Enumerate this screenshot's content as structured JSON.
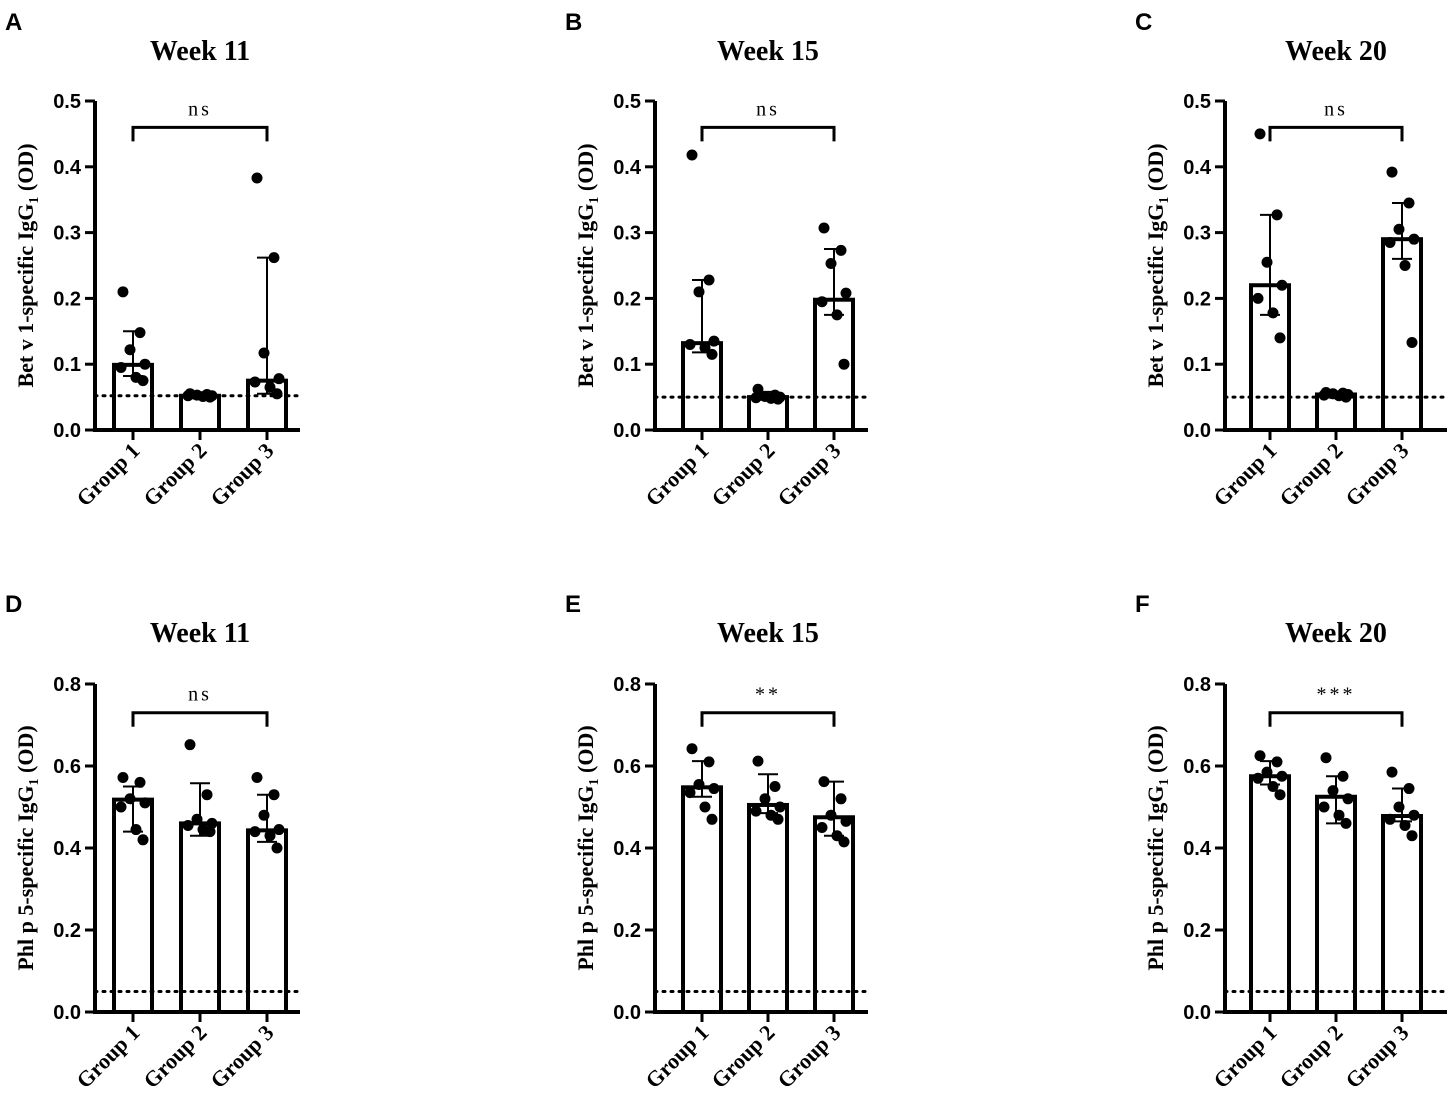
{
  "figure": {
    "threshold_label": "dotted cutoff",
    "colors": {
      "ink": "#000000",
      "bar_fill": "#ffffff"
    }
  },
  "chart_data": [
    {
      "type": "bar",
      "panel": "A",
      "title": "Week 11",
      "ylabel": "Bet v 1-specific IgG1 (OD)",
      "ylabel_main": "Bet v 1-specific IgG",
      "ylabel_sub": "1",
      "ylabel_tail": " (OD)",
      "categories": [
        "Group 1",
        "Group 2",
        "Group 3"
      ],
      "ylim": [
        0,
        0.5
      ],
      "yticks": [
        0,
        0.1,
        0.2,
        0.3,
        0.4,
        0.5
      ],
      "ytick_labels": [
        "0.0",
        "0.1",
        "0.2",
        "0.3",
        "0.4",
        "0.5"
      ],
      "threshold": 0.052,
      "bars": [
        0.099,
        0.052,
        0.075
      ],
      "err_low": [
        0.082,
        0.048,
        0.055
      ],
      "err_high": [
        0.15,
        0.056,
        0.262
      ],
      "points": [
        [
          0.21,
          0.148,
          0.122,
          0.1,
          0.095,
          0.08,
          0.075
        ],
        [
          0.055,
          0.054,
          0.053,
          0.052,
          0.052,
          0.051,
          0.05
        ],
        [
          0.383,
          0.262,
          0.117,
          0.078,
          0.073,
          0.065,
          0.055
        ]
      ],
      "significance": {
        "from": 0,
        "to": 2,
        "y": 0.46,
        "label": "ns"
      }
    },
    {
      "type": "bar",
      "panel": "B",
      "title": "Week 15",
      "ylabel": "Bet v 1-specific IgG1 (OD)",
      "ylabel_main": "Bet v 1-specific IgG",
      "ylabel_sub": "1",
      "ylabel_tail": " (OD)",
      "categories": [
        "Group 1",
        "Group 2",
        "Group 3"
      ],
      "ylim": [
        0,
        0.5
      ],
      "yticks": [
        0,
        0.1,
        0.2,
        0.3,
        0.4,
        0.5
      ],
      "ytick_labels": [
        "0.0",
        "0.1",
        "0.2",
        "0.3",
        "0.4",
        "0.5"
      ],
      "threshold": 0.05,
      "bars": [
        0.132,
        0.05,
        0.198
      ],
      "err_low": [
        0.118,
        0.046,
        0.175
      ],
      "err_high": [
        0.228,
        0.058,
        0.275
      ],
      "points": [
        [
          0.418,
          0.228,
          0.21,
          0.135,
          0.13,
          0.125,
          0.115
        ],
        [
          0.062,
          0.053,
          0.051,
          0.05,
          0.049,
          0.048,
          0.047
        ],
        [
          0.307,
          0.273,
          0.253,
          0.208,
          0.195,
          0.175,
          0.1
        ]
      ],
      "significance": {
        "from": 0,
        "to": 2,
        "y": 0.46,
        "label": "ns"
      }
    },
    {
      "type": "bar",
      "panel": "C",
      "title": "Week 20",
      "ylabel": "Bet v 1-specific IgG1 (OD)",
      "ylabel_main": "Bet v 1-specific IgG",
      "ylabel_sub": "1",
      "ylabel_tail": " (OD)",
      "categories": [
        "Group 1",
        "Group 2",
        "Group 3"
      ],
      "ylim": [
        0,
        0.5
      ],
      "yticks": [
        0,
        0.1,
        0.2,
        0.3,
        0.4,
        0.5
      ],
      "ytick_labels": [
        "0.0",
        "0.1",
        "0.2",
        "0.3",
        "0.4",
        "0.5"
      ],
      "threshold": 0.05,
      "bars": [
        0.22,
        0.054,
        0.29
      ],
      "err_low": [
        0.175,
        0.05,
        0.26
      ],
      "err_high": [
        0.327,
        0.058,
        0.345
      ],
      "points": [
        [
          0.45,
          0.327,
          0.255,
          0.22,
          0.2,
          0.178,
          0.14
        ],
        [
          0.057,
          0.056,
          0.055,
          0.054,
          0.053,
          0.052,
          0.05
        ],
        [
          0.392,
          0.345,
          0.305,
          0.29,
          0.285,
          0.25,
          0.133
        ]
      ],
      "significance": {
        "from": 0,
        "to": 2,
        "y": 0.46,
        "label": "ns"
      }
    },
    {
      "type": "bar",
      "panel": "D",
      "title": "Week 11",
      "ylabel": "Phl p 5-specific IgG1 (OD)",
      "ylabel_main": "Phl p 5-specific IgG",
      "ylabel_sub": "1",
      "ylabel_tail": " (OD)",
      "categories": [
        "Group 1",
        "Group 2",
        "Group 3"
      ],
      "ylim": [
        0,
        0.8
      ],
      "yticks": [
        0,
        0.2,
        0.4,
        0.6,
        0.8
      ],
      "ytick_labels": [
        "0.0",
        "0.2",
        "0.4",
        "0.6",
        "0.8"
      ],
      "threshold": 0.05,
      "bars": [
        0.518,
        0.46,
        0.443
      ],
      "err_low": [
        0.44,
        0.43,
        0.415
      ],
      "err_high": [
        0.55,
        0.558,
        0.53
      ],
      "points": [
        [
          0.572,
          0.56,
          0.52,
          0.51,
          0.5,
          0.445,
          0.42
        ],
        [
          0.652,
          0.53,
          0.47,
          0.46,
          0.455,
          0.445,
          0.44
        ],
        [
          0.572,
          0.53,
          0.48,
          0.445,
          0.44,
          0.43,
          0.4
        ]
      ],
      "significance": {
        "from": 0,
        "to": 2,
        "y": 0.73,
        "label": "ns"
      }
    },
    {
      "type": "bar",
      "panel": "E",
      "title": "Week 15",
      "ylabel": "Phl p 5-specific IgG1 (OD)",
      "ylabel_main": "Phl p 5-specific IgG",
      "ylabel_sub": "1",
      "ylabel_tail": " (OD)",
      "categories": [
        "Group 1",
        "Group 2",
        "Group 3"
      ],
      "ylim": [
        0,
        0.8
      ],
      "yticks": [
        0,
        0.2,
        0.4,
        0.6,
        0.8
      ],
      "ytick_labels": [
        "0.0",
        "0.2",
        "0.4",
        "0.6",
        "0.8"
      ],
      "threshold": 0.05,
      "bars": [
        0.548,
        0.505,
        0.475
      ],
      "err_low": [
        0.525,
        0.485,
        0.43
      ],
      "err_high": [
        0.612,
        0.58,
        0.562
      ],
      "points": [
        [
          0.642,
          0.61,
          0.555,
          0.545,
          0.535,
          0.5,
          0.47
        ],
        [
          0.612,
          0.55,
          0.52,
          0.5,
          0.49,
          0.48,
          0.47
        ],
        [
          0.562,
          0.52,
          0.48,
          0.465,
          0.45,
          0.43,
          0.415
        ]
      ],
      "significance": {
        "from": 0,
        "to": 2,
        "y": 0.73,
        "label": "**"
      }
    },
    {
      "type": "bar",
      "panel": "F",
      "title": "Week 20",
      "ylabel": "Phl p 5-specific IgG1 (OD)",
      "ylabel_main": "Phl p 5-specific IgG",
      "ylabel_sub": "1",
      "ylabel_tail": " (OD)",
      "categories": [
        "Group 1",
        "Group 2",
        "Group 3"
      ],
      "ylim": [
        0,
        0.8
      ],
      "yticks": [
        0,
        0.2,
        0.4,
        0.6,
        0.8
      ],
      "ytick_labels": [
        "0.0",
        "0.2",
        "0.4",
        "0.6",
        "0.8"
      ],
      "threshold": 0.05,
      "bars": [
        0.575,
        0.525,
        0.478
      ],
      "err_low": [
        0.555,
        0.46,
        0.465
      ],
      "err_high": [
        0.612,
        0.575,
        0.545
      ],
      "points": [
        [
          0.625,
          0.61,
          0.585,
          0.575,
          0.57,
          0.55,
          0.53
        ],
        [
          0.62,
          0.575,
          0.54,
          0.52,
          0.5,
          0.48,
          0.46
        ],
        [
          0.585,
          0.545,
          0.5,
          0.48,
          0.47,
          0.455,
          0.43
        ]
      ],
      "significance": {
        "from": 0,
        "to": 2,
        "y": 0.73,
        "label": "***"
      }
    }
  ]
}
